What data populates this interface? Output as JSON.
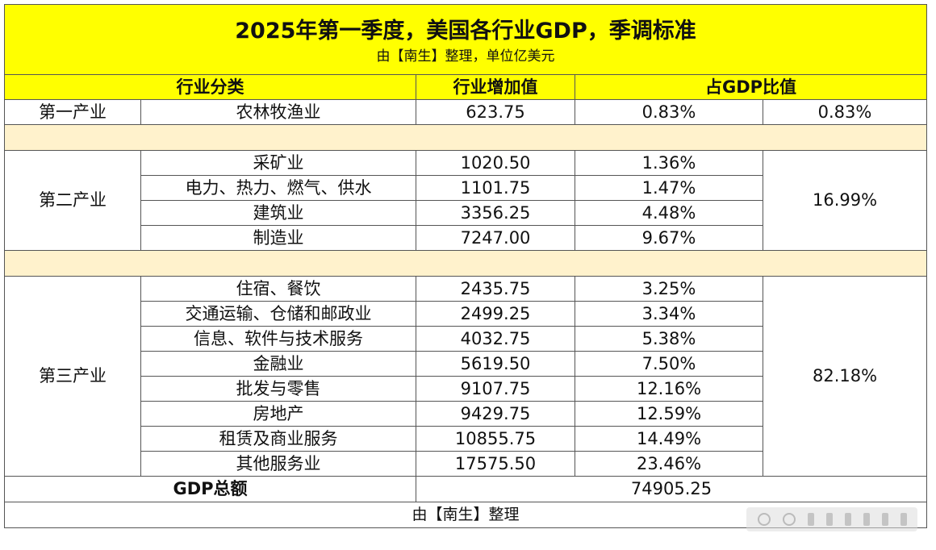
{
  "title": "2025年第一季度，美国各行业GDP，季调标准",
  "subtitle": "由【南生】整理，单位亿美元",
  "headers": {
    "category": "行业分类",
    "value": "行业增加值",
    "share": "占GDP比值"
  },
  "primary": {
    "sector": "第一产业",
    "rows": [
      {
        "industry": "农林牧渔业",
        "value": "623.75",
        "share": "0.83%"
      }
    ],
    "total_share": "0.83%"
  },
  "secondary": {
    "sector": "第二产业",
    "rows": [
      {
        "industry": "采矿业",
        "value": "1020.50",
        "share": "1.36%"
      },
      {
        "industry": "电力、热力、燃气、供水",
        "value": "1101.75",
        "share": "1.47%"
      },
      {
        "industry": "建筑业",
        "value": "3356.25",
        "share": "4.48%"
      },
      {
        "industry": "制造业",
        "value": "7247.00",
        "share": "9.67%"
      }
    ],
    "total_share": "16.99%"
  },
  "tertiary": {
    "sector": "第三产业",
    "rows": [
      {
        "industry": "住宿、餐饮",
        "value": "2435.75",
        "share": "3.25%"
      },
      {
        "industry": "交通运输、仓储和邮政业",
        "value": "2499.25",
        "share": "3.34%"
      },
      {
        "industry": "信息、软件与技术服务",
        "value": "4032.75",
        "share": "5.38%"
      },
      {
        "industry": "金融业",
        "value": "5619.50",
        "share": "7.50%"
      },
      {
        "industry": "批发与零售",
        "value": "9107.75",
        "share": "12.16%"
      },
      {
        "industry": "房地产",
        "value": "9429.75",
        "share": "12.59%"
      },
      {
        "industry": "租赁及商业服务",
        "value": "10855.75",
        "share": "14.49%"
      },
      {
        "industry": "其他服务业",
        "value": "17575.50",
        "share": "23.46%"
      }
    ],
    "total_share": "82.18%"
  },
  "total": {
    "label": "GDP总额",
    "value": "74905.25"
  },
  "footer": "由【南生】整理",
  "colors": {
    "header_bg": "#ffff00",
    "separator_bg": "#fff2cc",
    "border": "#555555"
  }
}
